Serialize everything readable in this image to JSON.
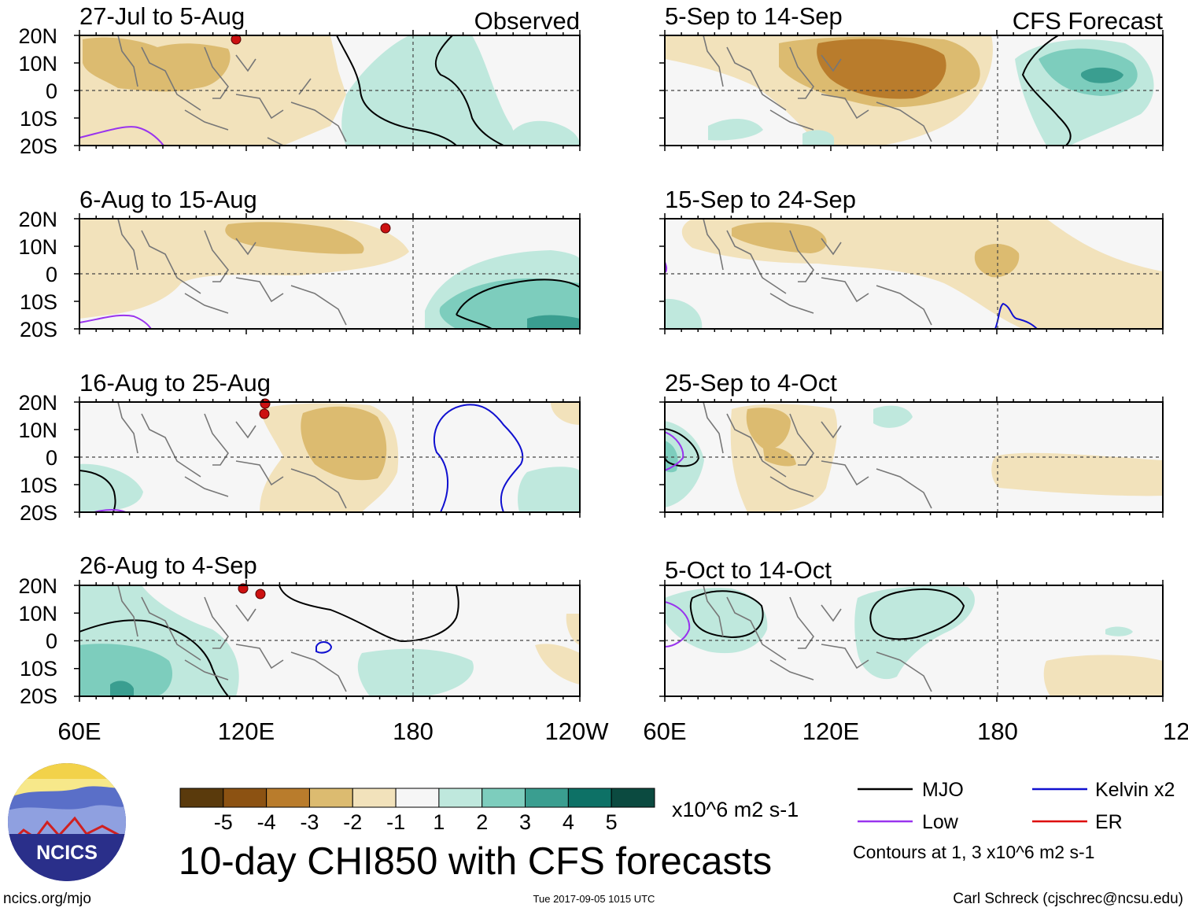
{
  "figure": {
    "title": "10-day CHI850 with CFS forecasts",
    "source_url": "ncics.org/mjo",
    "timestamp": "Tue 2017-09-05 1015 UTC",
    "author": "Carl Schreck (cjschrec@ncsu.edu)",
    "logo_text": "NCICS"
  },
  "columns": [
    {
      "label": "Observed"
    },
    {
      "label": "CFS Forecast"
    }
  ],
  "lat_labels": [
    "20N",
    "10N",
    "0",
    "10S",
    "20S"
  ],
  "lon_labels": [
    "60E",
    "120E",
    "180",
    "120W"
  ],
  "panels": [
    {
      "period": "27-Jul to 5-Aug",
      "column": "observed"
    },
    {
      "period": "6-Aug to 15-Aug",
      "column": "observed"
    },
    {
      "period": "16-Aug to 25-Aug",
      "column": "observed"
    },
    {
      "period": "26-Aug to 4-Sep",
      "column": "observed"
    },
    {
      "period": "5-Sep to 14-Sep",
      "column": "forecast"
    },
    {
      "period": "15-Sep to 24-Sep",
      "column": "forecast"
    },
    {
      "period": "25-Sep to 4-Oct",
      "column": "forecast"
    },
    {
      "period": "5-Oct to 14-Oct",
      "column": "forecast"
    }
  ],
  "colorbar": {
    "colors": [
      "#5a3a0c",
      "#8c5212",
      "#b97c2c",
      "#dcbb70",
      "#f2e2bb",
      "#f6f6f6",
      "#bfe8dd",
      "#7dcdbd",
      "#3a9e90",
      "#0d7166",
      "#0b4a40"
    ],
    "labels": [
      "-5",
      "-4",
      "-3",
      "-2",
      "-1",
      "1",
      "2",
      "3",
      "4",
      "5"
    ],
    "units": "x10^6 m2 s-1"
  },
  "legend": {
    "items": [
      {
        "label": "MJO",
        "color": "#000000"
      },
      {
        "label": "Kelvin x2",
        "color": "#1010d0"
      },
      {
        "label": "Low",
        "color": "#9933ee"
      },
      {
        "label": "ER",
        "color": "#dd0000"
      }
    ],
    "note": "Contours at 1, 3 x10^6 m2 s-1"
  },
  "colors": {
    "brown_light": "#f2e2bb",
    "brown_mid": "#dcbb70",
    "brown_dark": "#b97c2c",
    "teal_light": "#bfe8dd",
    "teal_mid": "#7dcdbd",
    "teal_dark": "#3a9e90",
    "background": "#f6f6f6",
    "land_outline": "#777777"
  }
}
